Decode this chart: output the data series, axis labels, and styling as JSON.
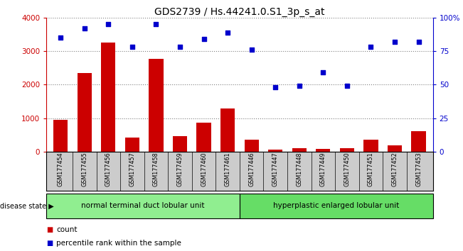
{
  "title": "GDS2739 / Hs.44241.0.S1_3p_s_at",
  "samples": [
    "GSM177454",
    "GSM177455",
    "GSM177456",
    "GSM177457",
    "GSM177458",
    "GSM177459",
    "GSM177460",
    "GSM177461",
    "GSM177446",
    "GSM177447",
    "GSM177448",
    "GSM177449",
    "GSM177450",
    "GSM177451",
    "GSM177452",
    "GSM177453"
  ],
  "counts": [
    950,
    2350,
    3250,
    430,
    2780,
    460,
    880,
    1300,
    370,
    60,
    110,
    90,
    110,
    370,
    200,
    620
  ],
  "percentiles": [
    85,
    92,
    95,
    78,
    95,
    78,
    84,
    89,
    76,
    48,
    49,
    59,
    49,
    78,
    82,
    82
  ],
  "group1_label": "normal terminal duct lobular unit",
  "group2_label": "hyperplastic enlarged lobular unit",
  "group1_count": 8,
  "group2_count": 8,
  "bar_color": "#cc0000",
  "dot_color": "#0000cc",
  "ylim_left": [
    0,
    4000
  ],
  "ylim_right": [
    0,
    100
  ],
  "yticks_left": [
    0,
    1000,
    2000,
    3000,
    4000
  ],
  "yticks_right": [
    0,
    25,
    50,
    75,
    100
  ],
  "yticklabels_right": [
    "0",
    "25",
    "50",
    "75",
    "100%"
  ],
  "legend_count_label": "count",
  "legend_pct_label": "percentile rank within the sample",
  "disease_state_label": "disease state",
  "group1_color": "#90ee90",
  "group2_color": "#66dd66",
  "tick_area_color": "#cccccc",
  "title_fontsize": 10
}
